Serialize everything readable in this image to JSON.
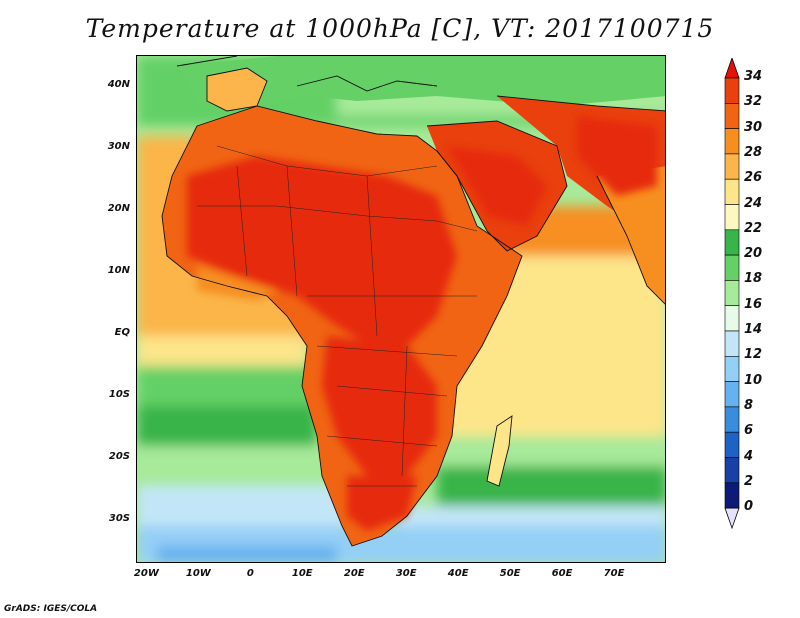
{
  "title": "Temperature at 1000hPa [C], VT: 2017100715",
  "credit": "GrADS: IGES/COLA",
  "map": {
    "lon_range": [
      -22,
      80
    ],
    "lat_range": [
      -37,
      45
    ],
    "lat_ticks": [
      {
        "value": 40,
        "label": "40N"
      },
      {
        "value": 30,
        "label": "30N"
      },
      {
        "value": 20,
        "label": "20N"
      },
      {
        "value": 10,
        "label": "10N"
      },
      {
        "value": 0,
        "label": "EQ"
      },
      {
        "value": -10,
        "label": "10S"
      },
      {
        "value": -20,
        "label": "20S"
      },
      {
        "value": -30,
        "label": "30S"
      }
    ],
    "lon_ticks": [
      {
        "value": -20,
        "label": "20W"
      },
      {
        "value": -10,
        "label": "10W"
      },
      {
        "value": 0,
        "label": "0"
      },
      {
        "value": 10,
        "label": "10E"
      },
      {
        "value": 20,
        "label": "20E"
      },
      {
        "value": 30,
        "label": "30E"
      },
      {
        "value": 40,
        "label": "40E"
      },
      {
        "value": 50,
        "label": "50E"
      },
      {
        "value": 60,
        "label": "60E"
      },
      {
        "value": 70,
        "label": "70E"
      }
    ]
  },
  "colorbar": {
    "levels": [
      "34",
      "32",
      "30",
      "28",
      "26",
      "24",
      "22",
      "20",
      "18",
      "16",
      "14",
      "12",
      "10",
      "8",
      "6",
      "4",
      "2",
      "0"
    ],
    "colors_top_to_bottom": [
      "#e62a0c",
      "#e9400e",
      "#f06414",
      "#f78f20",
      "#fbb54a",
      "#fde58a",
      "#fdf7c0",
      "#37b44a",
      "#64d066",
      "#a7ea99",
      "#e6fbe8",
      "#c2e6f7",
      "#94cff6",
      "#66b1ef",
      "#3a8cde",
      "#1f62c6",
      "#1840a6",
      "#0c1a78"
    ],
    "top_arrow_color": "#e5120a",
    "bottom_arrow_color": "#e6e2fb"
  }
}
